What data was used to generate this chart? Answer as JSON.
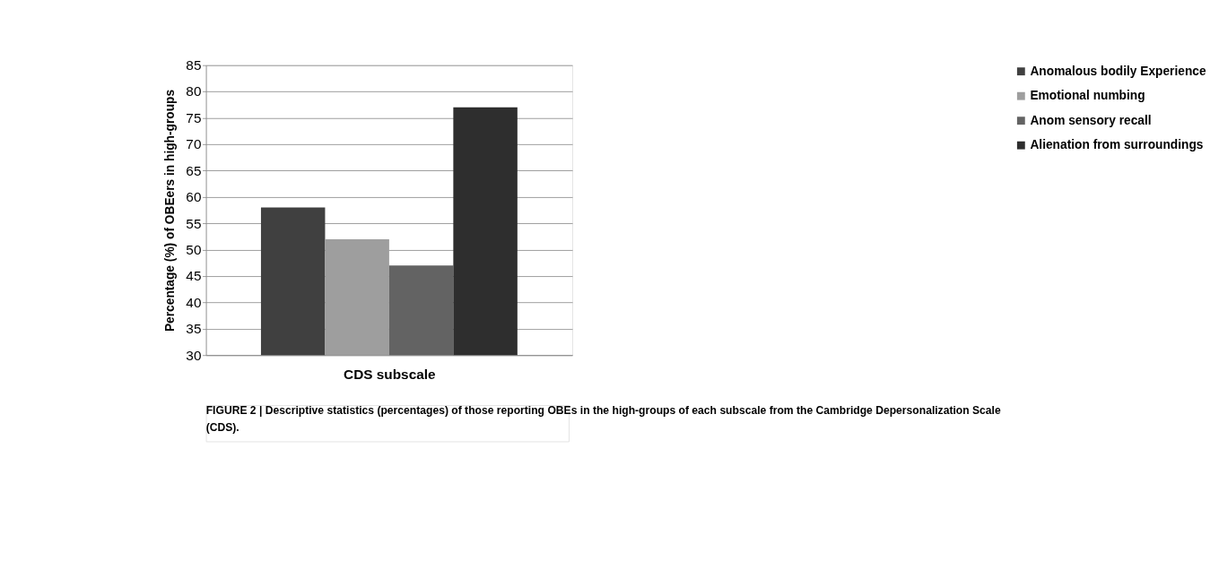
{
  "chart_data": {
    "type": "bar",
    "xlabel": "CDS subscale",
    "ylabel": "Percentage (%)  of OBEers in high-groups",
    "categories": [
      null
    ],
    "series": [
      {
        "name": "Anomalous bodily Experience",
        "color": "#404040",
        "values": [
          58
        ]
      },
      {
        "name": "Emotional numbing",
        "color": "#9e9e9e",
        "values": [
          52
        ]
      },
      {
        "name": "Anom sensory recall",
        "color": "#636363",
        "values": [
          47
        ]
      },
      {
        "name": "Alienation from surroundings",
        "color": "#2e2e2e",
        "values": [
          77
        ]
      }
    ],
    "ylim": [
      30,
      85
    ],
    "yticks": [
      30,
      35,
      40,
      45,
      50,
      55,
      60,
      65,
      70,
      75,
      80,
      85
    ],
    "grid": "y",
    "legend": "right",
    "annotations": [
      "FIGURE 2 | Descriptive statistics (percentages) of those reporting OBEs in the high-groups of each subscale from the Cambridge Depersonalization Scale (CDS)."
    ]
  }
}
